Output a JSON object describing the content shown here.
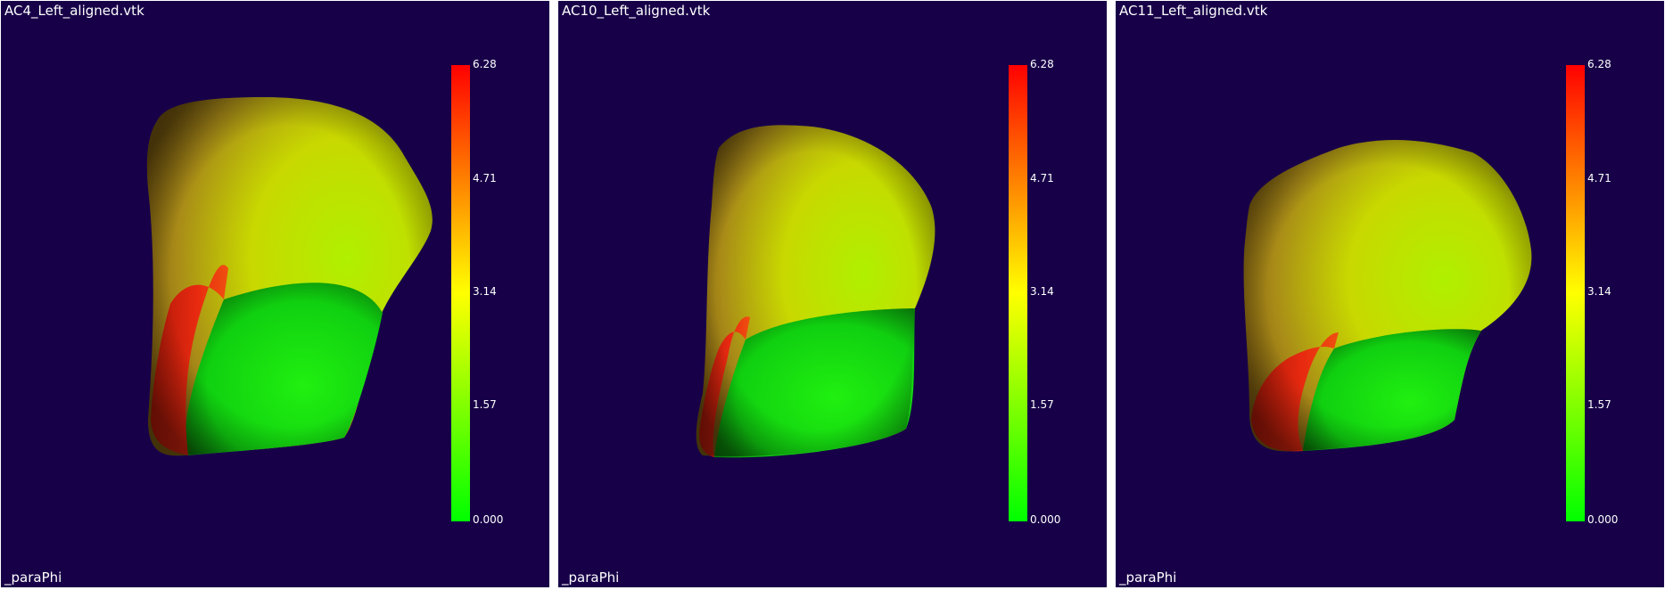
{
  "array_name": "_paraPhi",
  "colorbar": {
    "ticks": [
      "6.28",
      "4.71",
      "3.14",
      "1.57",
      "0.000"
    ],
    "colors": {
      "high": "#ff0000",
      "mid": "#ffff00",
      "low": "#00ff00"
    }
  },
  "background_color": "#170048",
  "viewports": [
    {
      "title": "AC4_Left_aligned.vtk"
    },
    {
      "title": "AC10_Left_aligned.vtk"
    },
    {
      "title": "AC11_Left_aligned.vtk"
    }
  ]
}
